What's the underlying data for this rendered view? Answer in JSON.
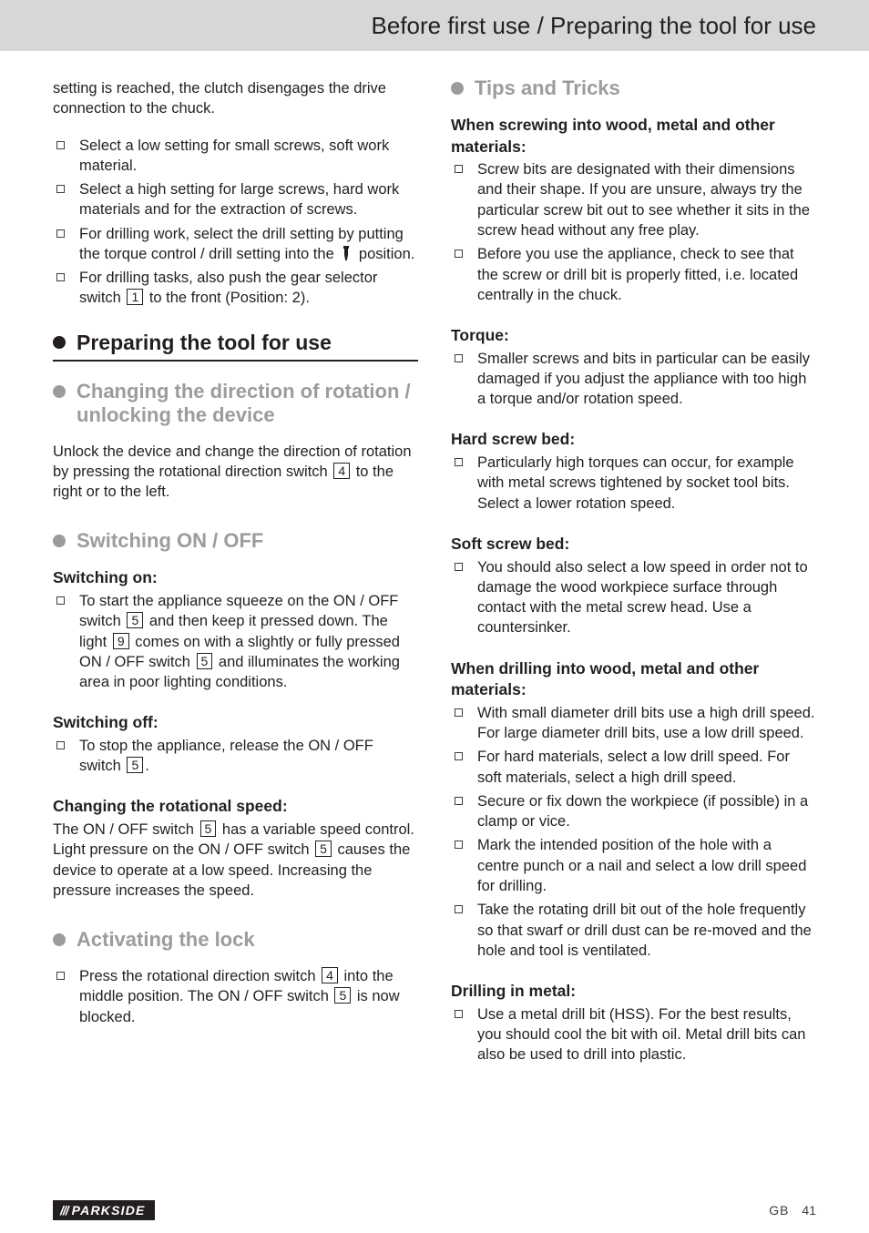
{
  "header": {
    "title": "Before first use / Preparing the tool for use"
  },
  "left": {
    "lead": "setting is reached, the clutch disengages the drive connection to the chuck.",
    "intro_bullets": [
      "Select a low setting for small screws, soft work material.",
      "Select a high setting for large screws, hard work materials and for the extraction of screws.",
      "For drilling work, select the drill setting by putting the torque control / drill setting into the __ICON__ position.",
      "For drilling tasks, also push the gear selector switch __BOX1__ to the front (Position: 2)."
    ],
    "section_preparing": "Preparing the tool for use",
    "sub_changing": "Changing the direction of rotation / unlocking the device",
    "changing_body": "Unlock the device and change the direction of rotation by pressing the rotational direction switch __BOX4__ to the right or to the left.",
    "sub_switch": "Switching ON / OFF",
    "switch_on_h": "Switching on:",
    "switch_on_li": "To start the appliance squeeze on the ON / OFF switch __BOX5__ and then keep it pressed down. The light __BOX9__ comes on with a slightly or fully pressed ON / OFF switch __BOX5__ and illuminates the working area in poor lighting conditions.",
    "switch_off_h": "Switching off:",
    "switch_off_li": "To stop the appliance, release the ON / OFF switch __BOX5__.",
    "speed_h": "Changing the rotational speed:",
    "speed_body": "The ON / OFF switch __BOX5__ has a variable speed control. Light pressure on the ON / OFF switch __BOX5__ causes the device to operate at a low speed. Increasing the pressure increases the speed.",
    "sub_lock": "Activating the lock",
    "lock_li": "Press the rotational direction switch __BOX4__ into the middle position. The ON / OFF switch __BOX5__ is now blocked."
  },
  "right": {
    "sub_tips": "Tips and Tricks",
    "screw_h": "When screwing into wood, metal and other materials:",
    "screw_bullets": [
      "Screw bits are designated with their dimensions and their shape. If you are unsure, always try the particular screw bit out to see whether it sits in the screw head without any free play.",
      "Before you use the appliance, check to see that the screw or drill bit is properly fitted, i.e. located centrally in the chuck."
    ],
    "torque_h": "Torque:",
    "torque_li": "Smaller screws and bits in particular can be easily damaged if you adjust the appliance with too high a torque and/or rotation speed.",
    "hard_h": "Hard screw bed:",
    "hard_li": "Particularly high torques can occur, for example with metal screws tightened by socket tool bits. Select a lower rotation speed.",
    "soft_h": "Soft screw bed:",
    "soft_li": "You should also select a low speed in order not to damage the wood workpiece surface through contact with the metal screw head. Use a countersinker.",
    "drill_h": "When drilling into wood, metal and other materials:",
    "drill_bullets": [
      "With small diameter drill bits use a high drill speed. For large diameter drill bits, use a low drill speed.",
      "For hard materials, select a low drill speed. For soft materials, select a high drill speed.",
      "Secure or fix down the workpiece (if possible) in a clamp or vice.",
      "Mark the intended position of the hole with a centre punch or a nail and select a low drill speed for drilling.",
      "Take the rotating drill bit out of the hole frequently so that swarf or drill dust can be re-moved and the hole and tool is ventilated."
    ],
    "metal_h": "Drilling in metal:",
    "metal_li": "Use a metal drill bit (HSS). For the best results, you should cool the bit with oil. Metal drill bits can also be used to drill into plastic."
  },
  "footer": {
    "brand": "PARKSIDE",
    "lang": "GB",
    "page": "41"
  },
  "refs": {
    "n1": "1",
    "n4": "4",
    "n5": "5",
    "n9": "9"
  }
}
